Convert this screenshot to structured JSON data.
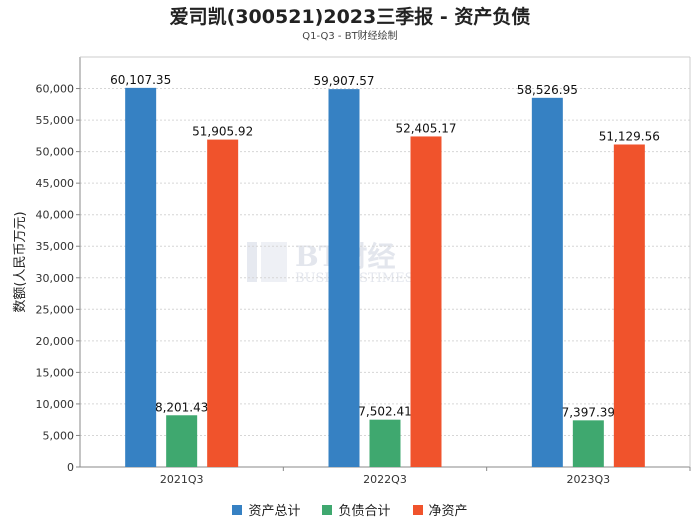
{
  "chart_data": {
    "type": "bar",
    "title": "爱司凯(300521)2023三季报 - 资产负债",
    "subtitle": "Q1-Q3 - BT财经绘制",
    "ylabel": "数额(人民币万元)",
    "xlabel": "",
    "categories": [
      "2021Q3",
      "2022Q3",
      "2023Q3"
    ],
    "ylim": [
      0,
      65000
    ],
    "yticks": [
      0,
      5000,
      10000,
      15000,
      20000,
      25000,
      30000,
      35000,
      40000,
      45000,
      50000,
      55000,
      60000
    ],
    "ytick_labels": [
      "0",
      "5,000",
      "10,000",
      "15,000",
      "20,000",
      "25,000",
      "30,000",
      "35,000",
      "40,000",
      "45,000",
      "50,000",
      "55,000",
      "60,000"
    ],
    "grid": true,
    "legend_position": "bottom-center",
    "series": [
      {
        "name": "资产总计",
        "color": "#3681c3",
        "values": [
          60107.35,
          59907.57,
          58526.95
        ],
        "labels": [
          "60,107.35",
          "59,907.57",
          "58,526.95"
        ]
      },
      {
        "name": "负债合计",
        "color": "#3fa86f",
        "values": [
          8201.43,
          7502.41,
          7397.39
        ],
        "labels": [
          "8,201.43",
          "7,502.41",
          "7,397.39"
        ]
      },
      {
        "name": "净资产",
        "color": "#f0532c",
        "values": [
          51905.92,
          52405.17,
          51129.56
        ],
        "labels": [
          "51,905.92",
          "52,405.17",
          "51,129.56"
        ]
      }
    ]
  },
  "watermark": {
    "brand": "BT财经",
    "tagline": "BUSINESSTIMES"
  }
}
